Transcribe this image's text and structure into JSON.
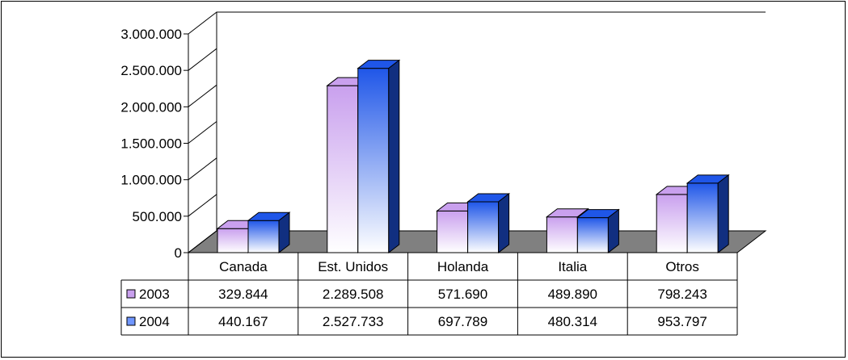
{
  "chart_data": {
    "type": "bar",
    "categories": [
      "Canada",
      "Est. Unidos",
      "Holanda",
      "Italia",
      "Otros"
    ],
    "series": [
      {
        "name": "2003",
        "values": [
          329844,
          2289508,
          571690,
          489890,
          798243
        ],
        "labels": [
          "329.844",
          "2.289.508",
          "571.690",
          "489.890",
          "798.243"
        ],
        "color_top": "#c9a0ee",
        "color_bottom": "#ffffff"
      },
      {
        "name": "2004",
        "values": [
          440167,
          2527733,
          697789,
          480314,
          953797
        ],
        "labels": [
          "440.167",
          "2.527.733",
          "697.789",
          "480.314",
          "953.797"
        ],
        "color_top": "#1f56e8",
        "color_bottom": "#ffffff"
      }
    ],
    "yticks": [
      0,
      500000,
      1000000,
      1500000,
      2000000,
      2500000,
      3000000
    ],
    "ytick_labels": [
      "0",
      "500.000",
      "1.000.000",
      "1.500.000",
      "2.000.000",
      "2.500.000",
      "3.000.000"
    ],
    "ylim": [
      0,
      3000000
    ],
    "three_d": true,
    "legend": "data-table",
    "grid": false,
    "floor_color": "#808080"
  }
}
